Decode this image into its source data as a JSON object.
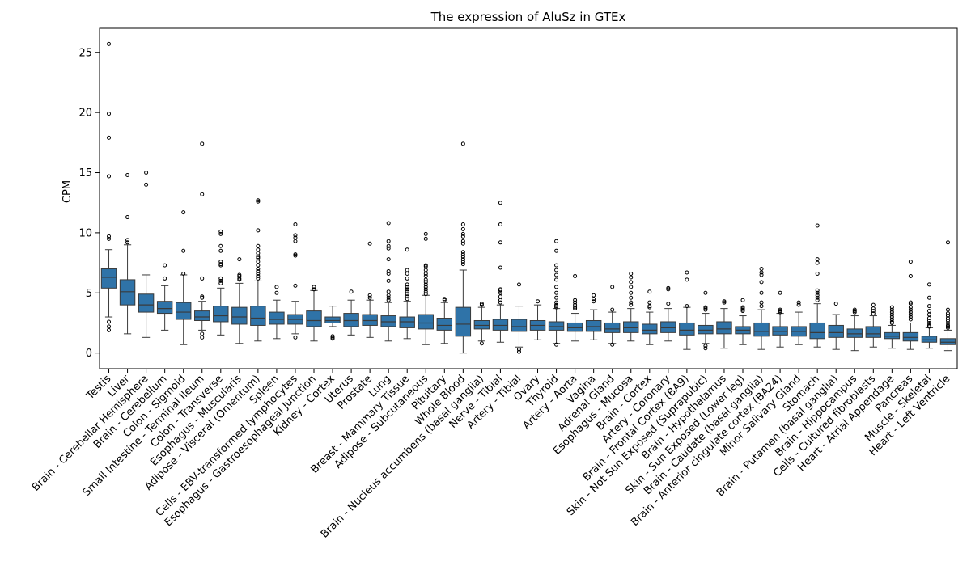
{
  "chart_data": {
    "type": "box",
    "title": "The expression of AluSz in GTEx",
    "xlabel": "",
    "ylabel": "CPM",
    "ylim": [
      -1.3,
      27
    ],
    "yticks": [
      0,
      5,
      10,
      15,
      20,
      25
    ],
    "grid": false,
    "legend": "none",
    "box_color": "#2f73a8",
    "line_color": "#3a3a3a",
    "categories": [
      "Testis",
      "Liver",
      "Brain - Cerebellar Hemisphere",
      "Brain - Cerebellum",
      "Colon - Sigmoid",
      "Small Intestine - Terminal Ileum",
      "Colon - Transverse",
      "Esophagus - Muscularis",
      "Adipose - Visceral (Omentum)",
      "Spleen",
      "Cells - EBV-transformed lymphocytes",
      "Esophagus - Gastroesophageal Junction",
      "Kidney - Cortex",
      "Uterus",
      "Prostate",
      "Lung",
      "Breast - Mammary Tissue",
      "Adipose - Subcutaneous",
      "Pituitary",
      "Whole Blood",
      "Brain - Nucleus accumbens (basal ganglia)",
      "Nerve - Tibial",
      "Artery - Tibial",
      "Ovary",
      "Thyroid",
      "Artery - Aorta",
      "Vagina",
      "Adrenal Gland",
      "Esophagus - Mucosa",
      "Brain - Cortex",
      "Artery - Coronary",
      "Brain - Frontal Cortex (BA9)",
      "Skin - Not Sun Exposed (Suprapubic)",
      "Brain - Hypothalamus",
      "Skin - Sun Exposed (Lower leg)",
      "Brain - Caudate (basal ganglia)",
      "Brain - Anterior cingulate cortex (BA24)",
      "Minor Salivary Gland",
      "Stomach",
      "Brain - Putamen (basal ganglia)",
      "Brain - Hippocampus",
      "Cells - Cultured fibroblasts",
      "Heart - Atrial Appendage",
      "Pancreas",
      "Muscle - Skeletal",
      "Heart - Left Ventricle"
    ],
    "boxes": [
      {
        "whislo": 3.0,
        "q1": 5.4,
        "med": 6.3,
        "q3": 7.0,
        "whishi": 8.6,
        "fliers": [
          25.7,
          19.9,
          17.9,
          14.7,
          9.7,
          9.5,
          2.6,
          2.2,
          1.9
        ]
      },
      {
        "whislo": 1.6,
        "q1": 4.0,
        "med": 5.1,
        "q3": 6.1,
        "whishi": 9.0,
        "fliers": [
          14.8,
          11.3,
          9.4,
          9.2
        ]
      },
      {
        "whislo": 1.3,
        "q1": 3.4,
        "med": 4.0,
        "q3": 4.9,
        "whishi": 6.5,
        "fliers": [
          15.0,
          14.0
        ]
      },
      {
        "whislo": 1.9,
        "q1": 3.3,
        "med": 3.7,
        "q3": 4.3,
        "whishi": 5.6,
        "fliers": [
          7.3,
          6.2
        ]
      },
      {
        "whislo": 0.7,
        "q1": 2.8,
        "med": 3.4,
        "q3": 4.2,
        "whishi": 6.5,
        "fliers": [
          11.7,
          8.5,
          6.6
        ]
      },
      {
        "whislo": 1.9,
        "q1": 2.7,
        "med": 3.0,
        "q3": 3.5,
        "whishi": 4.3,
        "fliers": [
          17.4,
          13.2,
          6.2,
          4.7,
          4.6,
          1.6,
          1.3
        ]
      },
      {
        "whislo": 1.5,
        "q1": 2.6,
        "med": 3.1,
        "q3": 3.9,
        "whishi": 5.4,
        "fliers": [
          10.1,
          9.9,
          8.9,
          8.5,
          7.6,
          7.4,
          7.3,
          6.2,
          6.0,
          5.8
        ]
      },
      {
        "whislo": 0.8,
        "q1": 2.4,
        "med": 3.0,
        "q3": 3.8,
        "whishi": 5.8,
        "fliers": [
          7.8,
          6.5,
          6.4,
          6.2,
          6.1
        ]
      },
      {
        "whislo": 1.0,
        "q1": 2.3,
        "med": 2.9,
        "q3": 3.9,
        "whishi": 6.0,
        "fliers": [
          12.7,
          12.6,
          10.2,
          8.9,
          8.6,
          8.3,
          8.0,
          7.9,
          7.6,
          7.3,
          7.0,
          6.8,
          6.6,
          6.4,
          6.2
        ]
      },
      {
        "whislo": 1.2,
        "q1": 2.4,
        "med": 2.8,
        "q3": 3.4,
        "whishi": 4.4,
        "fliers": [
          5.5,
          5.0
        ]
      },
      {
        "whislo": 1.6,
        "q1": 2.4,
        "med": 2.8,
        "q3": 3.2,
        "whishi": 4.3,
        "fliers": [
          10.7,
          9.8,
          9.6,
          9.3,
          8.2,
          8.1,
          5.6,
          1.3
        ]
      },
      {
        "whislo": 1.0,
        "q1": 2.2,
        "med": 2.7,
        "q3": 3.5,
        "whishi": 5.2,
        "fliers": [
          5.5,
          5.3
        ]
      },
      {
        "whislo": 2.2,
        "q1": 2.5,
        "med": 2.7,
        "q3": 3.0,
        "whishi": 3.9,
        "fliers": [
          1.4,
          1.3,
          1.2
        ]
      },
      {
        "whislo": 1.5,
        "q1": 2.2,
        "med": 2.7,
        "q3": 3.3,
        "whishi": 4.4,
        "fliers": [
          5.1
        ]
      },
      {
        "whislo": 1.3,
        "q1": 2.3,
        "med": 2.7,
        "q3": 3.2,
        "whishi": 4.4,
        "fliers": [
          9.1,
          4.8,
          4.6
        ]
      },
      {
        "whislo": 1.0,
        "q1": 2.2,
        "med": 2.6,
        "q3": 3.1,
        "whishi": 4.2,
        "fliers": [
          10.8,
          9.3,
          8.9,
          8.7,
          7.8,
          6.8,
          6.6,
          6.0,
          5.1,
          4.8,
          4.6,
          4.4
        ]
      },
      {
        "whislo": 1.2,
        "q1": 2.1,
        "med": 2.6,
        "q3": 3.0,
        "whishi": 4.3,
        "fliers": [
          8.6,
          6.9,
          6.6,
          6.2,
          5.7,
          5.5,
          5.3,
          5.1,
          4.9,
          4.7,
          4.5
        ]
      },
      {
        "whislo": 0.7,
        "q1": 2.0,
        "med": 2.5,
        "q3": 3.2,
        "whishi": 4.8,
        "fliers": [
          9.9,
          9.5,
          7.3,
          7.2,
          6.9,
          6.6,
          6.4,
          6.1,
          5.9,
          5.7,
          5.5,
          5.3,
          5.1,
          4.9
        ]
      },
      {
        "whislo": 0.8,
        "q1": 1.9,
        "med": 2.3,
        "q3": 2.9,
        "whishi": 4.2,
        "fliers": [
          4.5,
          4.4
        ]
      },
      {
        "whislo": 0.0,
        "q1": 1.4,
        "med": 2.4,
        "q3": 3.8,
        "whishi": 6.9,
        "fliers": [
          17.4,
          10.7,
          10.3,
          9.9,
          9.7,
          9.3,
          9.1,
          8.4,
          8.2,
          8.0,
          7.8,
          7.6,
          7.4
        ]
      },
      {
        "whislo": 1.0,
        "q1": 2.0,
        "med": 2.3,
        "q3": 2.7,
        "whishi": 3.8,
        "fliers": [
          4.1,
          4.0,
          0.8
        ]
      },
      {
        "whislo": 0.9,
        "q1": 1.9,
        "med": 2.3,
        "q3": 2.8,
        "whishi": 4.0,
        "fliers": [
          12.5,
          10.7,
          9.2,
          7.1,
          5.3,
          5.2,
          5.0,
          4.7,
          4.4,
          4.2
        ]
      },
      {
        "whislo": 0.5,
        "q1": 1.8,
        "med": 2.2,
        "q3": 2.8,
        "whishi": 3.9,
        "fliers": [
          5.7,
          0.3,
          0.1
        ]
      },
      {
        "whislo": 1.1,
        "q1": 1.9,
        "med": 2.3,
        "q3": 2.7,
        "whishi": 4.0,
        "fliers": [
          4.3
        ]
      },
      {
        "whislo": 0.8,
        "q1": 1.9,
        "med": 2.2,
        "q3": 2.6,
        "whishi": 3.7,
        "fliers": [
          9.3,
          8.5,
          7.3,
          6.9,
          6.5,
          6.1,
          5.5,
          5.0,
          4.6,
          4.2,
          4.0,
          3.9,
          3.8,
          0.7
        ]
      },
      {
        "whislo": 1.0,
        "q1": 1.8,
        "med": 2.1,
        "q3": 2.5,
        "whishi": 3.3,
        "fliers": [
          6.4,
          4.4,
          4.2,
          4.0,
          3.8,
          3.7
        ]
      },
      {
        "whislo": 1.1,
        "q1": 1.8,
        "med": 2.2,
        "q3": 2.7,
        "whishi": 3.6,
        "fliers": [
          4.8,
          4.5,
          4.3
        ]
      },
      {
        "whislo": 0.8,
        "q1": 1.7,
        "med": 2.0,
        "q3": 2.5,
        "whishi": 3.4,
        "fliers": [
          5.5,
          3.6,
          0.7
        ]
      },
      {
        "whislo": 1.0,
        "q1": 1.7,
        "med": 2.1,
        "q3": 2.6,
        "whishi": 3.7,
        "fliers": [
          6.6,
          6.3,
          5.9,
          5.5,
          5.0,
          4.6,
          4.2,
          4.0
        ]
      },
      {
        "whislo": 0.7,
        "q1": 1.6,
        "med": 1.9,
        "q3": 2.4,
        "whishi": 3.4,
        "fliers": [
          5.1,
          4.2,
          3.9,
          3.8
        ]
      },
      {
        "whislo": 1.0,
        "q1": 1.7,
        "med": 2.1,
        "q3": 2.6,
        "whishi": 3.7,
        "fliers": [
          5.4,
          5.3,
          4.1
        ]
      },
      {
        "whislo": 0.3,
        "q1": 1.5,
        "med": 1.9,
        "q3": 2.5,
        "whishi": 3.8,
        "fliers": [
          6.7,
          6.1,
          3.9
        ]
      },
      {
        "whislo": 0.8,
        "q1": 1.6,
        "med": 1.9,
        "q3": 2.3,
        "whishi": 3.3,
        "fliers": [
          5.0,
          3.8,
          3.7,
          3.6,
          0.6,
          0.4
        ]
      },
      {
        "whislo": 0.4,
        "q1": 1.6,
        "med": 2.0,
        "q3": 2.6,
        "whishi": 3.7,
        "fliers": [
          4.3,
          4.2
        ]
      },
      {
        "whislo": 0.7,
        "q1": 1.6,
        "med": 1.9,
        "q3": 2.2,
        "whishi": 3.1,
        "fliers": [
          4.4,
          3.8,
          3.7,
          3.6,
          3.5
        ]
      },
      {
        "whislo": 0.3,
        "q1": 1.4,
        "med": 1.8,
        "q3": 2.5,
        "whishi": 3.6,
        "fliers": [
          7.0,
          6.7,
          6.5,
          5.9,
          5.0,
          4.2,
          3.9
        ]
      },
      {
        "whislo": 0.5,
        "q1": 1.5,
        "med": 1.8,
        "q3": 2.2,
        "whishi": 3.3,
        "fliers": [
          5.0,
          3.6,
          3.5,
          3.4
        ]
      },
      {
        "whislo": 0.7,
        "q1": 1.4,
        "med": 1.8,
        "q3": 2.2,
        "whishi": 3.4,
        "fliers": [
          4.2,
          4.0
        ]
      },
      {
        "whislo": 0.5,
        "q1": 1.2,
        "med": 1.7,
        "q3": 2.5,
        "whishi": 4.1,
        "fliers": [
          10.6,
          7.8,
          7.5,
          6.6,
          5.2,
          5.0,
          4.8,
          4.6,
          4.4
        ]
      },
      {
        "whislo": 0.3,
        "q1": 1.3,
        "med": 1.7,
        "q3": 2.3,
        "whishi": 3.2,
        "fliers": [
          4.1
        ]
      },
      {
        "whislo": 0.2,
        "q1": 1.3,
        "med": 1.6,
        "q3": 2.0,
        "whishi": 3.1,
        "fliers": [
          3.6,
          3.5,
          3.4
        ]
      },
      {
        "whislo": 0.5,
        "q1": 1.3,
        "med": 1.6,
        "q3": 2.2,
        "whishi": 3.1,
        "fliers": [
          4.0,
          3.7,
          3.5,
          3.3
        ]
      },
      {
        "whislo": 0.4,
        "q1": 1.2,
        "med": 1.4,
        "q3": 1.7,
        "whishi": 2.3,
        "fliers": [
          3.8,
          3.6,
          3.4,
          3.2,
          3.0,
          2.8,
          2.6,
          2.5
        ]
      },
      {
        "whislo": 0.3,
        "q1": 1.0,
        "med": 1.3,
        "q3": 1.7,
        "whishi": 2.5,
        "fliers": [
          7.6,
          6.4,
          4.2,
          4.1,
          3.8,
          3.6,
          3.4,
          3.2,
          3.0,
          2.8
        ]
      },
      {
        "whislo": 0.4,
        "q1": 0.9,
        "med": 1.1,
        "q3": 1.4,
        "whishi": 2.1,
        "fliers": [
          5.7,
          4.6,
          3.9,
          3.5,
          3.2,
          2.9,
          2.7,
          2.5,
          2.3,
          2.2
        ]
      },
      {
        "whislo": 0.2,
        "q1": 0.7,
        "med": 0.9,
        "q3": 1.2,
        "whishi": 1.9,
        "fliers": [
          9.2,
          3.6,
          3.3,
          3.1,
          2.9,
          2.7,
          2.5,
          2.3,
          2.2,
          2.1
        ]
      }
    ]
  }
}
